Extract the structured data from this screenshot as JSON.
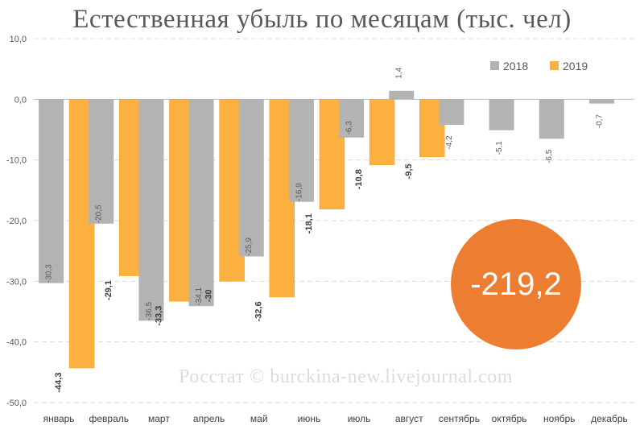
{
  "chart_data": {
    "type": "bar",
    "title": "Естественная убыль по месяцам (тыс. чел)",
    "categories": [
      "январь",
      "февраль",
      "март",
      "апрель",
      "май",
      "июнь",
      "июль",
      "август",
      "сентябрь",
      "октябрь",
      "ноябрь",
      "декабрь"
    ],
    "series": [
      {
        "name": "2018",
        "color": "#b3b3b3",
        "values": [
          -30.3,
          -20.5,
          -36.5,
          -34.1,
          -25.9,
          -16.9,
          -6.3,
          1.4,
          -4.2,
          -5.1,
          -6.5,
          -0.7
        ],
        "labels": [
          "-30,3",
          "-20,5",
          "-36,5",
          "-34,1",
          "-25,9",
          "-16,9",
          "-6,3",
          "1,4",
          "-4,2",
          "-5,1",
          "-6,5",
          "-0,7"
        ]
      },
      {
        "name": "2019",
        "color": "#fbb040",
        "values": [
          -44.3,
          -29.1,
          -33.3,
          -30,
          -32.6,
          -18.1,
          -10.8,
          -9.5,
          null,
          null,
          null,
          null
        ],
        "labels": [
          "-44,3",
          "-29,1",
          "-33,3",
          "-30",
          "-32,6",
          "-18,1",
          "-10,8",
          "-9,5",
          "",
          "",
          "",
          ""
        ]
      }
    ],
    "yticks": [
      "10,0",
      "0,0",
      "-10,0",
      "-20,0",
      "-30,0",
      "-40,0",
      "-50,0"
    ],
    "ylim": [
      -50,
      10
    ],
    "grid": true,
    "legend_position": "top-right"
  },
  "total_badge": "-219,2",
  "watermark": "Росстат © burckina-new.livejournal.com"
}
